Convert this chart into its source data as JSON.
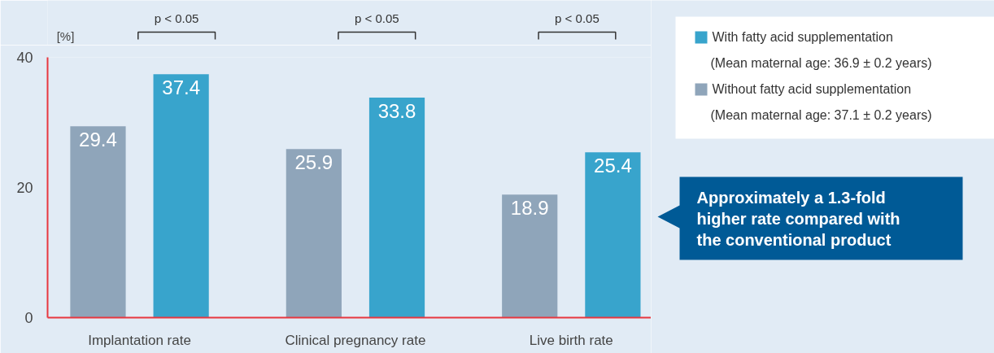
{
  "chart_data": {
    "type": "bar",
    "ylabel": "[%]",
    "categories": [
      "Implantation rate",
      "Clinical pregnancy rate",
      "Live birth rate"
    ],
    "series": [
      {
        "name": "Without fatty acid supplementation (Mean maternal age: 37.1 ± 0.2 years)",
        "color": "#8fa5ba",
        "values": [
          29.4,
          25.9,
          18.9
        ]
      },
      {
        "name": "With fatty acid supplementation (Mean maternal age: 36.9 ± 0.2 years)",
        "color": "#38a4cc",
        "values": [
          37.4,
          33.8,
          25.4
        ]
      }
    ],
    "ylim": [
      0,
      40
    ],
    "yticks": [
      0,
      20,
      40
    ],
    "grid": false,
    "legend": "top right",
    "data_labels": true,
    "annotations": [
      "p < 0.05",
      "p < 0.05",
      "p < 0.05",
      "Approximately a 1.3-fold higher rate compared with the conventional product"
    ]
  }
}
